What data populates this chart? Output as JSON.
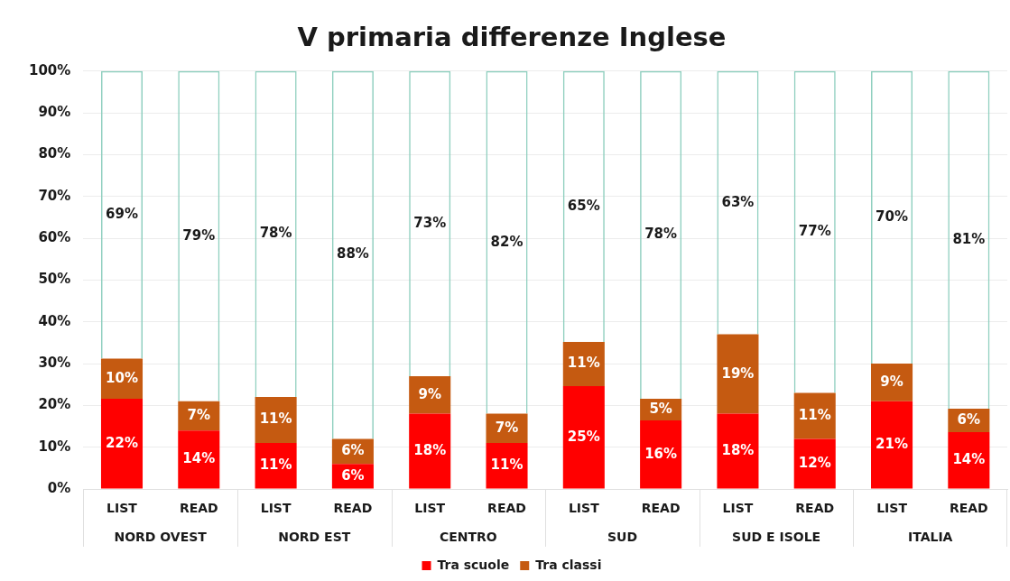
{
  "chart_data": {
    "type": "bar",
    "title": "V primaria differenze Inglese",
    "categories": [
      "LIST",
      "READ",
      "LIST",
      "READ",
      "LIST",
      "READ",
      "LIST",
      "READ",
      "LIST",
      "READ",
      "LIST",
      "READ"
    ],
    "annotations": [
      "NORD OVEST",
      "NORD EST",
      "CENTRO",
      "SUD",
      "SUD E ISOLE",
      "ITALIA"
    ],
    "series": [
      {
        "name": "Tra scuole",
        "color": "#ff0000",
        "values": [
          21.6,
          14,
          11,
          6,
          18,
          11,
          24.6,
          16.4,
          18,
          12,
          21,
          13.6
        ],
        "value_labels": [
          "22%",
          "14%",
          "11%",
          "6%",
          "18%",
          "11%",
          "25%",
          "16%",
          "18%",
          "12%",
          "21%",
          "14%"
        ]
      },
      {
        "name": "Tra classi",
        "color": "#c55a11",
        "values": [
          9.6,
          7,
          11,
          6,
          9,
          7,
          10.6,
          5.2,
          19,
          11,
          9,
          5.6
        ],
        "value_labels": [
          "10%",
          "7%",
          "11%",
          "6%",
          "9%",
          "7%",
          "11%",
          "5%",
          "19%",
          "11%",
          "9%",
          "6%"
        ]
      },
      {
        "color": "#8fcfbf",
        "values": [
          68.8,
          79,
          78,
          88,
          73,
          82,
          64.8,
          78.4,
          63,
          77,
          70,
          80.8
        ],
        "value_labels": [
          "69%",
          "79%",
          "78%",
          "88%",
          "73%",
          "82%",
          "65%",
          "78%",
          "63%",
          "77%",
          "70%",
          "81%"
        ]
      }
    ],
    "stacked": true,
    "ylim": [
      0,
      100
    ],
    "yticks": [
      {
        "value": 0,
        "label": "0%"
      },
      {
        "value": 10,
        "label": "10%"
      },
      {
        "value": 20,
        "label": "20%"
      },
      {
        "value": 30,
        "label": "30%"
      },
      {
        "value": 40,
        "label": "40%"
      },
      {
        "value": 50,
        "label": "50%"
      },
      {
        "value": 60,
        "label": "60%"
      },
      {
        "value": 70,
        "label": "70%"
      },
      {
        "value": 80,
        "label": "80%"
      },
      {
        "value": 90,
        "label": "90%"
      },
      {
        "value": 100,
        "label": "100%"
      }
    ],
    "grid": "y",
    "legend": "bottom"
  }
}
